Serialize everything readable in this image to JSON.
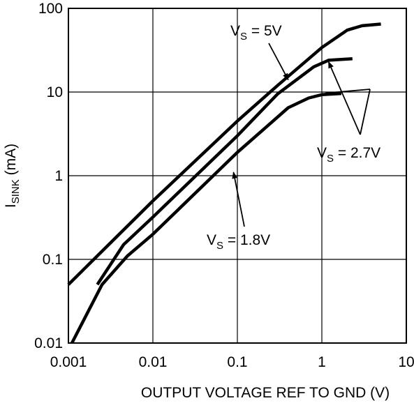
{
  "chart_data": {
    "type": "line",
    "xscale": "log",
    "yscale": "log",
    "xlim": [
      0.001,
      10
    ],
    "ylim": [
      0.01,
      100
    ],
    "xticks": [
      0.001,
      0.01,
      0.1,
      1,
      10
    ],
    "yticks": [
      0.01,
      0.1,
      1,
      10,
      100
    ],
    "xtick_labels": [
      "0.001",
      "0.01",
      "0.1",
      "1",
      "10"
    ],
    "ytick_labels": [
      "0.01",
      "0.1",
      "1",
      "10",
      "100"
    ],
    "xlabel": "OUTPUT VOLTAGE REF TO GND (V)",
    "ylabel_main": "I",
    "ylabel_sub": "SINK",
    "ylabel_rest": " (mA)",
    "grid": true,
    "series": [
      {
        "name": "VS = 5V",
        "x": [
          0.001,
          0.01,
          0.1,
          0.3,
          1,
          2,
          3,
          5
        ],
        "y": [
          0.05,
          0.5,
          4.5,
          12,
          34,
          55,
          62,
          65
        ]
      },
      {
        "name": "VS = 2.7V",
        "x": [
          0.0022,
          0.0045,
          0.01,
          0.1,
          0.3,
          0.8,
          1.2,
          2.3
        ],
        "y": [
          0.05,
          0.15,
          0.32,
          3,
          9.5,
          20,
          24,
          25
        ]
      },
      {
        "name": "VS = 1.8V",
        "x": [
          0.0011,
          0.0025,
          0.005,
          0.01,
          0.1,
          0.4,
          0.7,
          1.0,
          1.7
        ],
        "y": [
          0.01,
          0.05,
          0.11,
          0.2,
          1.9,
          6.5,
          8.5,
          9.3,
          9.6
        ]
      }
    ],
    "annotations": [
      {
        "main": "V",
        "sub": "S",
        "rest": " = 5V",
        "target_x": 0.4,
        "target_y": 14
      },
      {
        "main": "V",
        "sub": "S",
        "rest": " = 2.7V",
        "target_x": 1.2,
        "target_y": 23
      },
      {
        "main": "V",
        "sub": "S",
        "rest": " = 1.8V",
        "target_x": 0.09,
        "target_y": 1.1
      }
    ]
  }
}
